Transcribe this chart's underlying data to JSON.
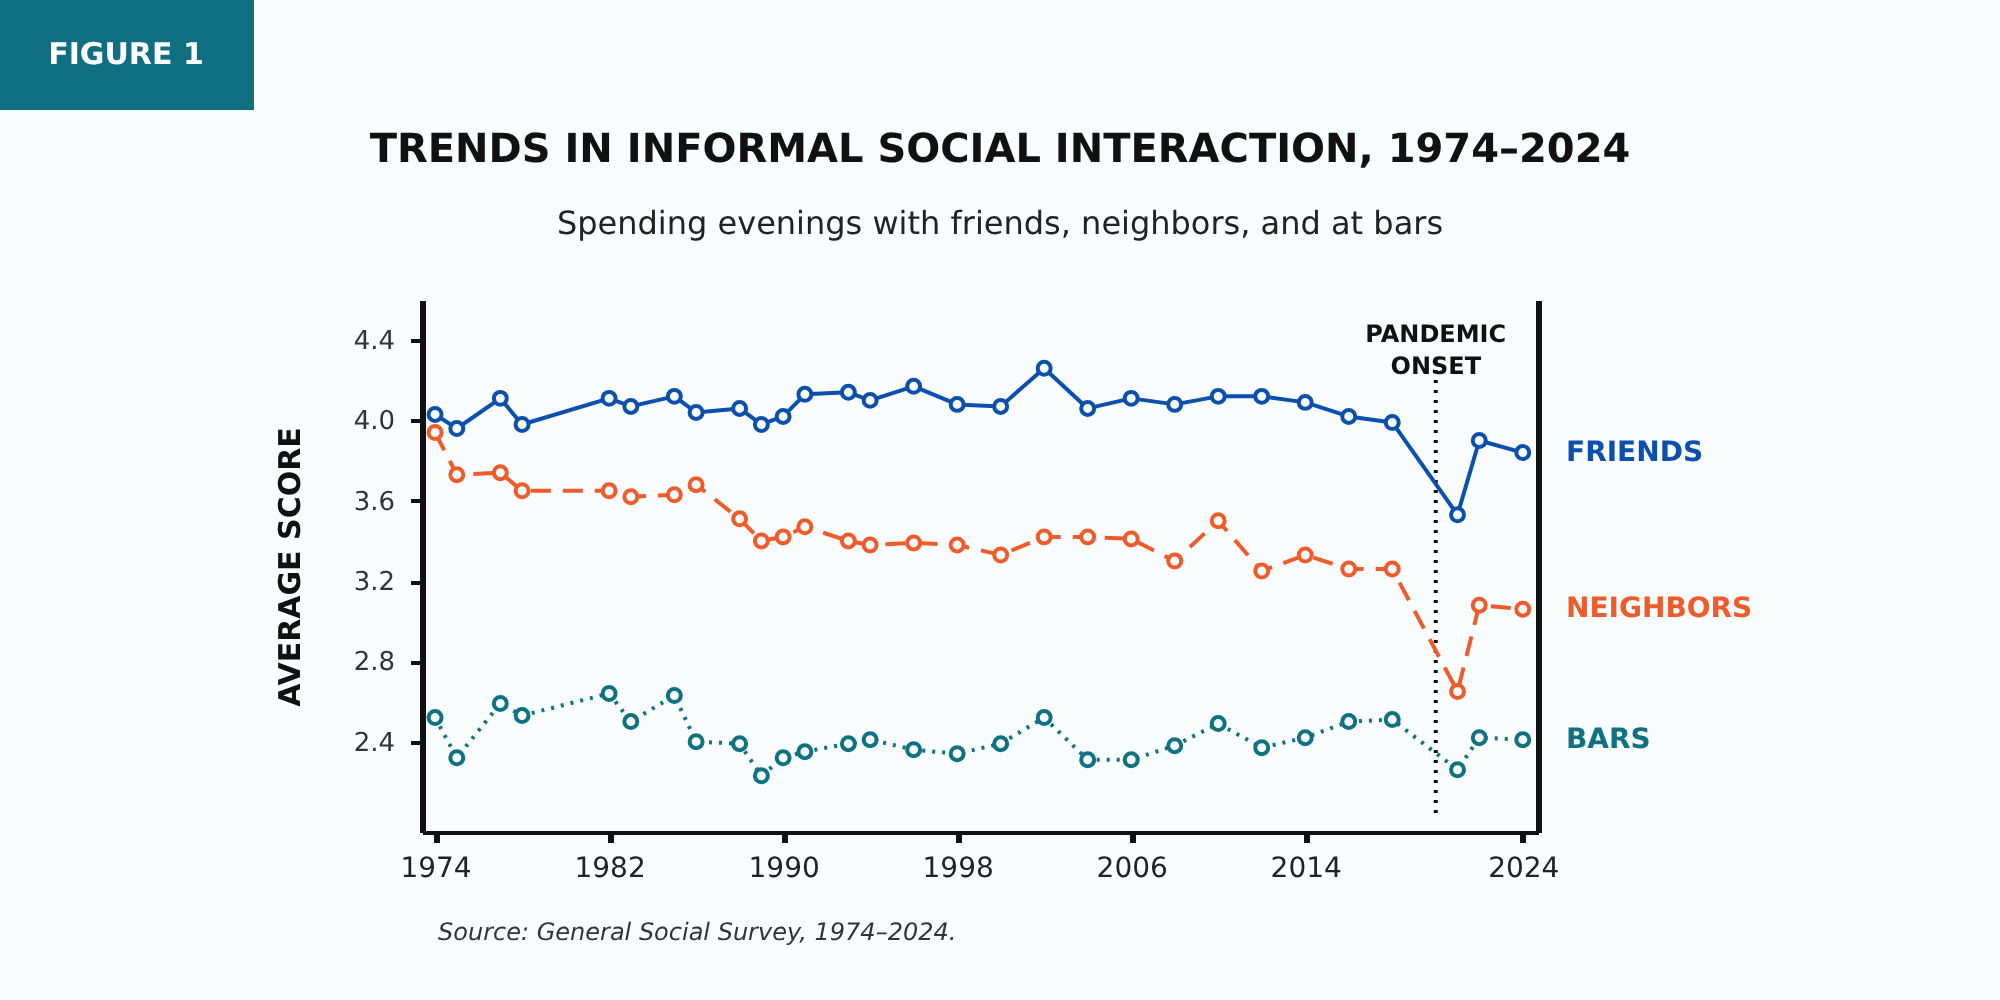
{
  "chart_data": {
    "type": "line",
    "title": "TRENDS IN INFORMAL SOCIAL INTERACTION, 1974–2024",
    "subtitle": "Spending evenings with friends, neighbors, and at bars",
    "ylabel": "AVERAGE SCORE",
    "annotations": [
      "FIGURE 1",
      "Source: General Social Survey, 1974–2024."
    ],
    "x": [
      1974,
      1975,
      1977,
      1978,
      1982,
      1983,
      1985,
      1986,
      1988,
      1989,
      1990,
      1991,
      1993,
      1994,
      1996,
      1998,
      2000,
      2002,
      2004,
      2006,
      2008,
      2010,
      2012,
      2014,
      2016,
      2018,
      2021,
      2022,
      2024
    ],
    "series": [
      {
        "name": "FRIENDS",
        "color": "#0d4fad",
        "line_style": "solid",
        "values": [
          4.03,
          3.96,
          4.11,
          3.98,
          4.11,
          4.07,
          4.12,
          4.04,
          4.06,
          3.98,
          4.02,
          4.13,
          4.14,
          4.1,
          4.17,
          4.08,
          4.07,
          4.26,
          4.06,
          4.11,
          4.08,
          4.12,
          4.12,
          4.09,
          4.02,
          3.99,
          3.53,
          3.9,
          3.84
        ]
      },
      {
        "name": "NEIGHBORS",
        "color": "#ef5b2b",
        "line_style": "dashed",
        "values": [
          3.94,
          3.73,
          3.74,
          3.65,
          3.65,
          3.62,
          3.63,
          3.68,
          3.51,
          3.4,
          3.42,
          3.47,
          3.4,
          3.38,
          3.39,
          3.38,
          3.33,
          3.42,
          3.42,
          3.41,
          3.3,
          3.5,
          3.25,
          3.33,
          3.26,
          3.26,
          2.65,
          3.08,
          3.06
        ]
      },
      {
        "name": "BARS",
        "color": "#0f7282",
        "line_style": "dotted",
        "values": [
          2.52,
          2.32,
          2.59,
          2.53,
          2.64,
          2.5,
          2.63,
          2.4,
          2.39,
          2.23,
          2.32,
          2.35,
          2.39,
          2.41,
          2.36,
          2.34,
          2.39,
          2.52,
          2.31,
          2.31,
          2.38,
          2.49,
          2.37,
          2.42,
          2.5,
          2.51,
          2.26,
          2.42,
          2.41
        ]
      }
    ],
    "xlim": [
      1973.4,
      2024.7
    ],
    "ylim": [
      1.95,
      4.6
    ],
    "xticks": [
      1974,
      1982,
      1990,
      1998,
      2006,
      2014,
      2024
    ],
    "yticks": [
      2.4,
      2.8,
      3.2,
      3.6,
      {
        "value": 4,
        "label": "4.0"
      },
      4.4
    ],
    "ref_lines": [
      {
        "axis": "x",
        "value": 2020,
        "label": "PANDEMIC ONSET",
        "color": "#111111",
        "line_style": "dotted"
      }
    ],
    "marker": "circle"
  }
}
